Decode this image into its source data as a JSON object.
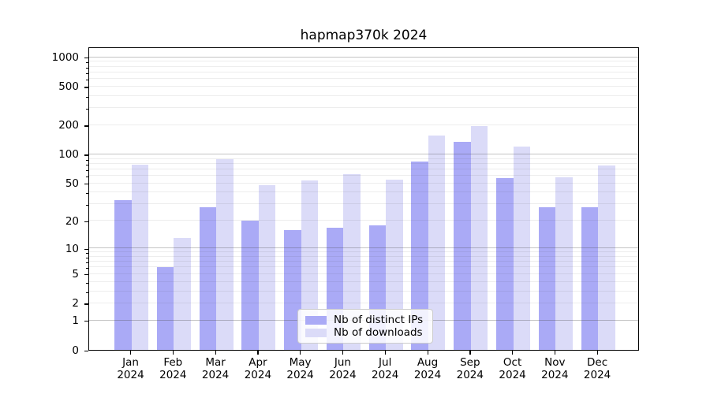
{
  "chart_data": {
    "type": "bar",
    "title": "hapmap370k 2024",
    "y_scale": "log10(1+x)",
    "categories": [
      "Jan",
      "Feb",
      "Mar",
      "Apr",
      "May",
      "Jun",
      "Jul",
      "Aug",
      "Sep",
      "Oct",
      "Nov",
      "Dec"
    ],
    "category_year": "2024",
    "series": [
      {
        "name": "Nb of distinct IPs",
        "color": "#aaaaf6",
        "values": [
          33,
          6,
          28,
          20,
          16,
          17,
          18,
          84,
          135,
          57,
          28,
          28
        ]
      },
      {
        "name": "Nb of downloads",
        "color": "#dbdbf8",
        "values": [
          78,
          13,
          89,
          48,
          54,
          62,
          55,
          158,
          195,
          120,
          58,
          77
        ]
      }
    ],
    "yticks": [
      0,
      1,
      2,
      5,
      10,
      20,
      50,
      100,
      200,
      500,
      1000
    ],
    "ylim": [
      0,
      1288
    ],
    "grid": {
      "horizontal": true,
      "major_at": [
        1,
        10,
        100,
        1000
      ],
      "minor_between_decades": true,
      "drawn_over_bars": true
    },
    "legend_position": "lower center",
    "xlabel": "",
    "ylabel": ""
  }
}
